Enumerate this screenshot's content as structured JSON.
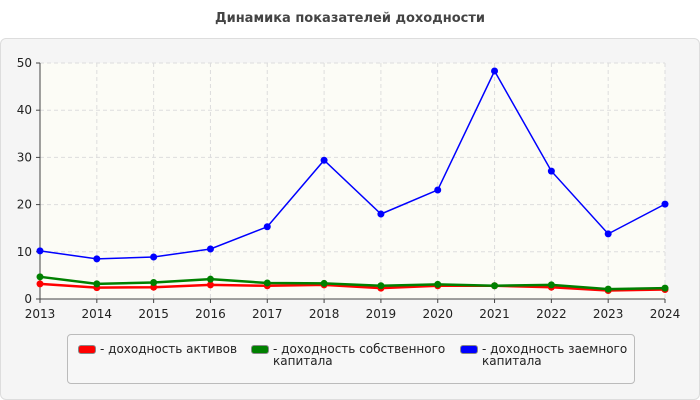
{
  "chart_data": {
    "type": "line",
    "title": "Динамика показателей доходности",
    "categories": [
      "2013",
      "2014",
      "2015",
      "2016",
      "2017",
      "2018",
      "2019",
      "2020",
      "2021",
      "2022",
      "2023",
      "2024"
    ],
    "ylim": [
      0,
      50
    ],
    "yticks": [
      "0",
      "10",
      "20",
      "30",
      "40",
      "50"
    ],
    "grid": true,
    "legend_position": "bottom",
    "series": [
      {
        "name": "- доходность активов",
        "color": "#ff0000",
        "values": [
          3.2,
          2.4,
          2.5,
          3.0,
          2.8,
          3.0,
          2.3,
          2.8,
          2.8,
          2.5,
          1.8,
          2.0
        ]
      },
      {
        "name": "- доходность собственного капитала",
        "color": "#008000",
        "values": [
          4.7,
          3.2,
          3.5,
          4.2,
          3.4,
          3.3,
          2.8,
          3.1,
          2.8,
          3.0,
          2.1,
          2.3
        ]
      },
      {
        "name": "- доходность заемного капитала",
        "color": "#0000ff",
        "values": [
          10.2,
          8.5,
          8.9,
          10.6,
          15.3,
          29.4,
          18.0,
          23.1,
          48.3,
          27.1,
          13.8,
          20.1
        ]
      }
    ]
  }
}
